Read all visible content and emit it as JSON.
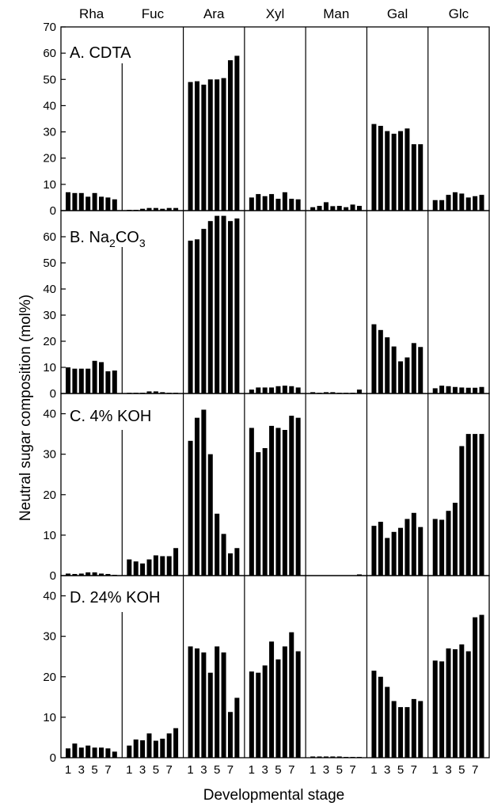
{
  "chart_data": {
    "type": "bar",
    "xlabel": "Developmental stage",
    "ylabel": "Neutral sugar composition (mol%)",
    "sugars": [
      "Rha",
      "Fuc",
      "Ara",
      "Xyl",
      "Man",
      "Gal",
      "Glc"
    ],
    "x_tick_labels": [
      "1",
      "3",
      "5",
      "7"
    ],
    "stages": [
      1,
      2,
      3,
      4,
      5,
      6,
      7,
      8
    ],
    "panels": [
      {
        "label": "A. CDTA",
        "ylim": [
          0,
          70
        ],
        "yticks": [
          0,
          10,
          20,
          30,
          40,
          50,
          60,
          70
        ],
        "values": {
          "Rha": [
            7,
            6.7,
            6.7,
            5.3,
            6.7,
            5.3,
            5,
            4.3
          ],
          "Fuc": [
            0.3,
            0.3,
            0.7,
            1,
            1,
            0.7,
            1,
            1
          ],
          "Ara": [
            49,
            49.3,
            48,
            50,
            50,
            50.5,
            57.3,
            59
          ],
          "Xyl": [
            5,
            6.3,
            5.5,
            6.3,
            4.5,
            7,
            4.5,
            4.3
          ],
          "Man": [
            1.3,
            1.8,
            3.2,
            1.7,
            1.8,
            1.3,
            2.3,
            1.8
          ],
          "Gal": [
            33,
            32.3,
            30.3,
            29.3,
            30.3,
            31.3,
            25.3,
            25.3
          ],
          "Glc": [
            4,
            4,
            6,
            7,
            6.5,
            5,
            5.5,
            6
          ]
        }
      },
      {
        "label_main": "B. Na",
        "label_sub1": "2",
        "label_mid": "CO",
        "label_sub2": "3",
        "ylim": [
          0,
          70
        ],
        "yticks": [
          0,
          10,
          20,
          30,
          40,
          50,
          60
        ],
        "values": {
          "Rha": [
            10,
            9.5,
            9.5,
            9.5,
            12.5,
            12,
            8.5,
            8.8
          ],
          "Fuc": [
            0.3,
            0.3,
            0.3,
            0.8,
            0.8,
            0.5,
            0.3,
            0.3
          ],
          "Ara": [
            58.5,
            59,
            63,
            66,
            68,
            68,
            66,
            67
          ],
          "Xyl": [
            1.5,
            2.3,
            2.3,
            2.3,
            2.8,
            3,
            2.8,
            2.3
          ],
          "Man": [
            0.5,
            0.3,
            0.5,
            0.5,
            0.3,
            0.3,
            0.3,
            1.5
          ],
          "Gal": [
            26.5,
            24.3,
            21.5,
            18,
            12.3,
            13.8,
            19.3,
            17.8
          ],
          "Glc": [
            2,
            3,
            2.8,
            2.5,
            2.3,
            2.2,
            2.2,
            2.5
          ]
        }
      },
      {
        "label": "C. 4% KOH",
        "ylim": [
          0,
          45
        ],
        "yticks": [
          0,
          10,
          20,
          30,
          40
        ],
        "values": {
          "Rha": [
            0.5,
            0.4,
            0.5,
            0.8,
            0.8,
            0.5,
            0.4,
            0.2
          ],
          "Fuc": [
            4,
            3.5,
            3,
            4,
            5,
            4.8,
            4.8,
            6.8
          ],
          "Ara": [
            33.3,
            39,
            41,
            30,
            15.3,
            10.3,
            5.5,
            6.8
          ],
          "Xyl": [
            36.5,
            30.5,
            31.5,
            37,
            36.5,
            36,
            39.5,
            39
          ],
          "Man": [
            0,
            0,
            0,
            0,
            0,
            0,
            0,
            0.3
          ],
          "Gal": [
            12.3,
            13.3,
            9.3,
            10.8,
            11.8,
            14,
            15.5,
            12
          ],
          "Glc": [
            14,
            13.8,
            16,
            18,
            32,
            35,
            35,
            35
          ]
        }
      },
      {
        "label": "D. 24% KOH",
        "ylim": [
          0,
          45
        ],
        "yticks": [
          0,
          10,
          20,
          30,
          40
        ],
        "values": {
          "Rha": [
            2.3,
            3.5,
            2.5,
            3,
            2.5,
            2.5,
            2.3,
            1.5
          ],
          "Fuc": [
            3,
            4.5,
            4.3,
            6,
            4.2,
            4.7,
            6,
            7.3
          ],
          "Ara": [
            27.5,
            27,
            26,
            21,
            27.5,
            26,
            11.3,
            14.8
          ],
          "Xyl": [
            21.3,
            21,
            22.8,
            28.7,
            24.3,
            27.5,
            31,
            26.3
          ],
          "Man": [
            0.3,
            0.3,
            0.3,
            0.3,
            0.3,
            0.2,
            0.2,
            0.2
          ],
          "Gal": [
            21.5,
            20,
            17.5,
            14,
            12.5,
            12.5,
            14.5,
            14
          ],
          "Glc": [
            24,
            23.8,
            27,
            26.8,
            28,
            26.3,
            34.7,
            35.3
          ]
        }
      }
    ]
  }
}
